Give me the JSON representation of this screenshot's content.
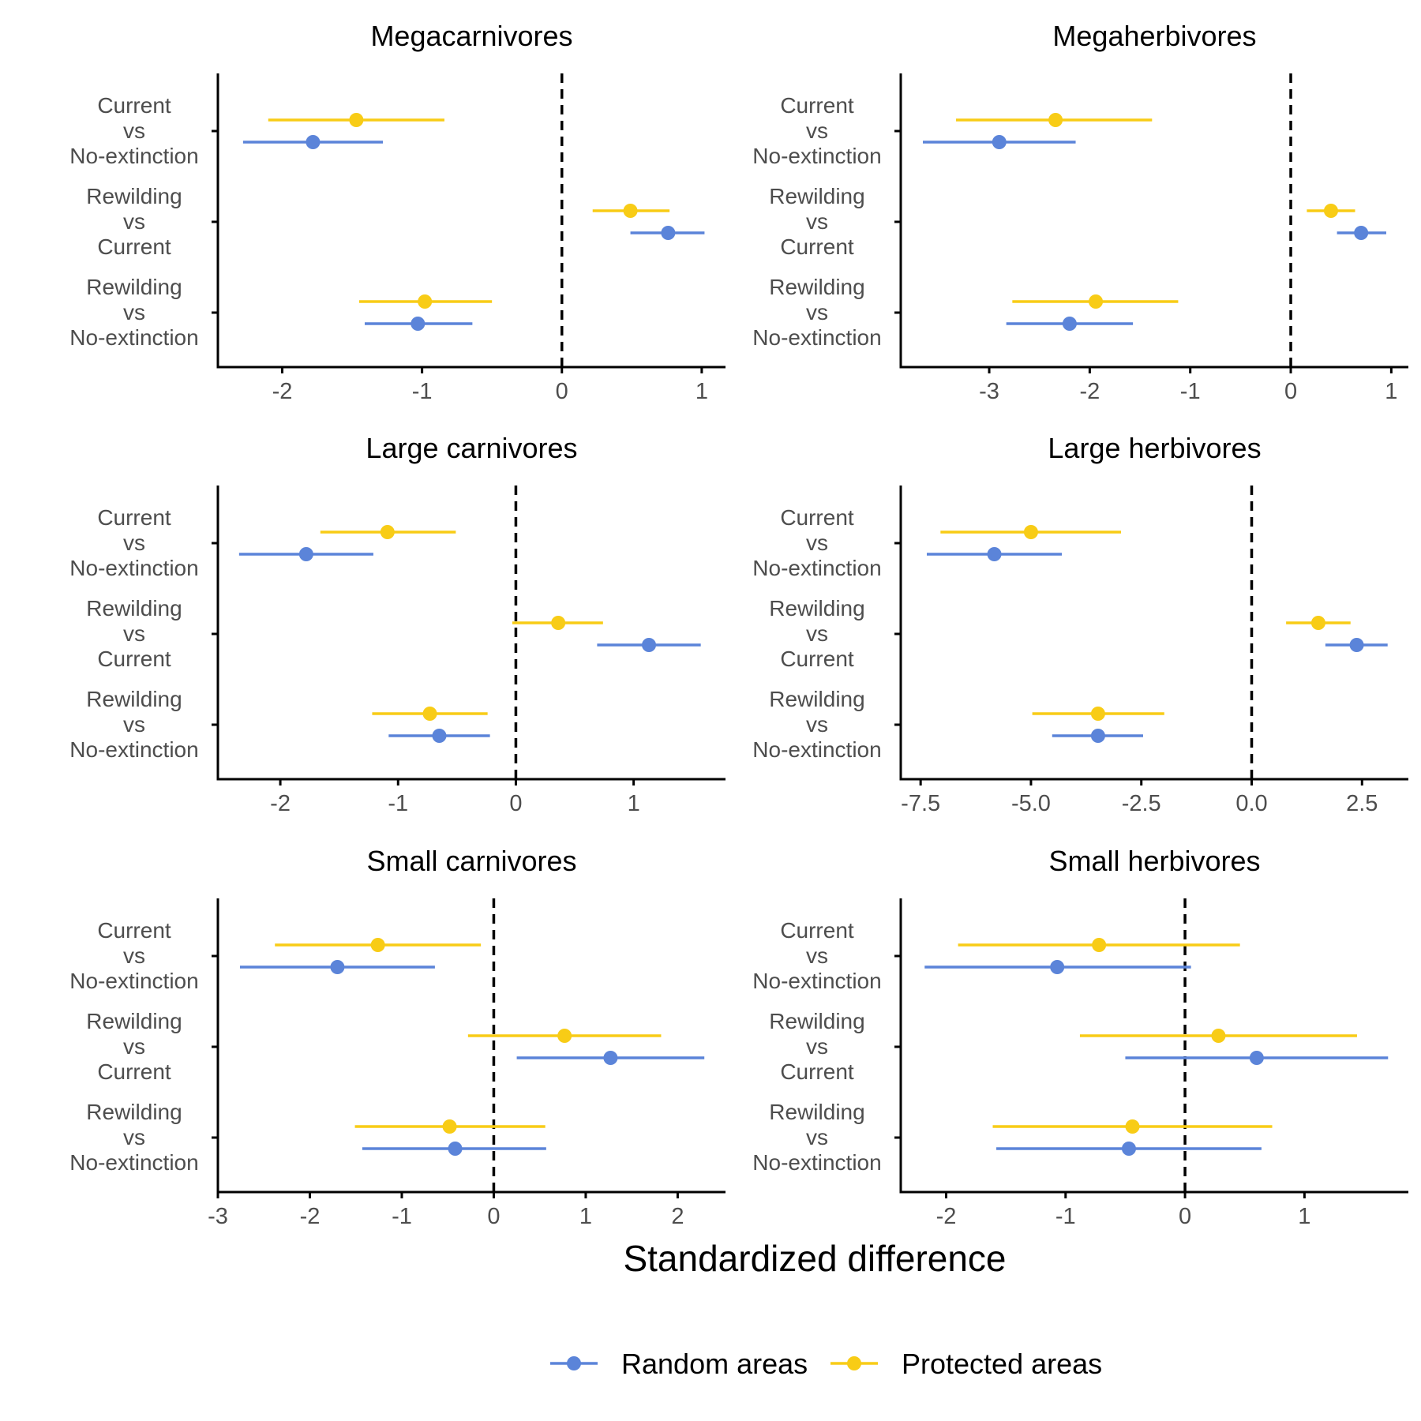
{
  "chart_data": {
    "type": "errorbar",
    "xlabel": "Standardized difference",
    "comparisons": [
      [
        "Current",
        "vs",
        "No-extinction"
      ],
      [
        "Rewilding",
        "vs",
        "Current"
      ],
      [
        "Rewilding",
        "vs",
        "No-extinction"
      ]
    ],
    "legend": {
      "placement": "bottom",
      "items": [
        {
          "name": "Random areas",
          "color": "#5B84D9"
        },
        {
          "name": "Protected areas",
          "color": "#F8CC16"
        }
      ]
    },
    "reference_line": 0,
    "panels": [
      {
        "title": "Megacarnivores",
        "xlim": [
          -2.46,
          1.17
        ],
        "ticks": [
          "-2",
          "-1",
          "0",
          "1"
        ],
        "series": {
          "Random areas": [
            {
              "est": -1.78,
              "lo": -2.28,
              "hi": -1.28
            },
            {
              "est": 0.76,
              "lo": 0.49,
              "hi": 1.02
            },
            {
              "est": -1.03,
              "lo": -1.41,
              "hi": -0.64
            }
          ],
          "Protected areas": [
            {
              "est": -1.47,
              "lo": -2.1,
              "hi": -0.84
            },
            {
              "est": 0.49,
              "lo": 0.22,
              "hi": 0.77
            },
            {
              "est": -0.98,
              "lo": -1.45,
              "hi": -0.5
            }
          ]
        }
      },
      {
        "title": "Megaherbivores",
        "xlim": [
          -3.88,
          1.17
        ],
        "ticks": [
          "-3",
          "-2",
          "-1",
          "0",
          "1"
        ],
        "series": {
          "Random areas": [
            {
              "est": -2.9,
              "lo": -3.66,
              "hi": -2.14
            },
            {
              "est": 0.7,
              "lo": 0.46,
              "hi": 0.95
            },
            {
              "est": -2.2,
              "lo": -2.83,
              "hi": -1.57
            }
          ],
          "Protected areas": [
            {
              "est": -2.34,
              "lo": -3.33,
              "hi": -1.38
            },
            {
              "est": 0.4,
              "lo": 0.16,
              "hi": 0.64
            },
            {
              "est": -1.94,
              "lo": -2.77,
              "hi": -1.12
            }
          ]
        }
      },
      {
        "title": "Large carnivores",
        "xlim": [
          -2.53,
          1.78
        ],
        "ticks": [
          "-2",
          "-1",
          "0",
          "1"
        ],
        "series": {
          "Random areas": [
            {
              "est": -1.78,
              "lo": -2.35,
              "hi": -1.21
            },
            {
              "est": 1.13,
              "lo": 0.69,
              "hi": 1.57
            },
            {
              "est": -0.65,
              "lo": -1.08,
              "hi": -0.22
            }
          ],
          "Protected areas": [
            {
              "est": -1.09,
              "lo": -1.66,
              "hi": -0.51
            },
            {
              "est": 0.36,
              "lo": -0.03,
              "hi": 0.74
            },
            {
              "est": -0.73,
              "lo": -1.22,
              "hi": -0.24
            }
          ]
        }
      },
      {
        "title": "Large herbivores",
        "xlim": [
          -7.95,
          3.55
        ],
        "ticks": [
          "-7.5",
          "-5.0",
          "-2.5",
          "0.0",
          "2.5"
        ],
        "series": {
          "Random areas": [
            {
              "est": -5.83,
              "lo": -7.36,
              "hi": -4.3
            },
            {
              "est": 2.38,
              "lo": 1.67,
              "hi": 3.08
            },
            {
              "est": -3.48,
              "lo": -4.52,
              "hi": -2.46
            }
          ],
          "Protected areas": [
            {
              "est": -5.0,
              "lo": -7.05,
              "hi": -2.96
            },
            {
              "est": 1.51,
              "lo": 0.78,
              "hi": 2.24
            },
            {
              "est": -3.48,
              "lo": -4.97,
              "hi": -1.98
            }
          ]
        }
      },
      {
        "title": "Small carnivores",
        "xlim": [
          -3.0,
          2.52
        ],
        "ticks": [
          "-3",
          "-2",
          "-1",
          "0",
          "1",
          "2"
        ],
        "series": {
          "Random areas": [
            {
              "est": -1.7,
              "lo": -2.76,
              "hi": -0.64
            },
            {
              "est": 1.27,
              "lo": 0.25,
              "hi": 2.29
            },
            {
              "est": -0.42,
              "lo": -1.43,
              "hi": 0.57
            }
          ],
          "Protected areas": [
            {
              "est": -1.26,
              "lo": -2.38,
              "hi": -0.14
            },
            {
              "est": 0.77,
              "lo": -0.28,
              "hi": 1.82
            },
            {
              "est": -0.48,
              "lo": -1.51,
              "hi": 0.56
            }
          ]
        }
      },
      {
        "title": "Small herbivores",
        "xlim": [
          -2.38,
          1.87
        ],
        "ticks": [
          "-2",
          "-1",
          "0",
          "1"
        ],
        "series": {
          "Random areas": [
            {
              "est": -1.07,
              "lo": -2.18,
              "hi": 0.05
            },
            {
              "est": 0.6,
              "lo": -0.5,
              "hi": 1.7
            },
            {
              "est": -0.47,
              "lo": -1.58,
              "hi": 0.64
            }
          ],
          "Protected areas": [
            {
              "est": -0.72,
              "lo": -1.9,
              "hi": 0.46
            },
            {
              "est": 0.28,
              "lo": -0.88,
              "hi": 1.44
            },
            {
              "est": -0.44,
              "lo": -1.61,
              "hi": 0.73
            }
          ]
        }
      }
    ]
  }
}
